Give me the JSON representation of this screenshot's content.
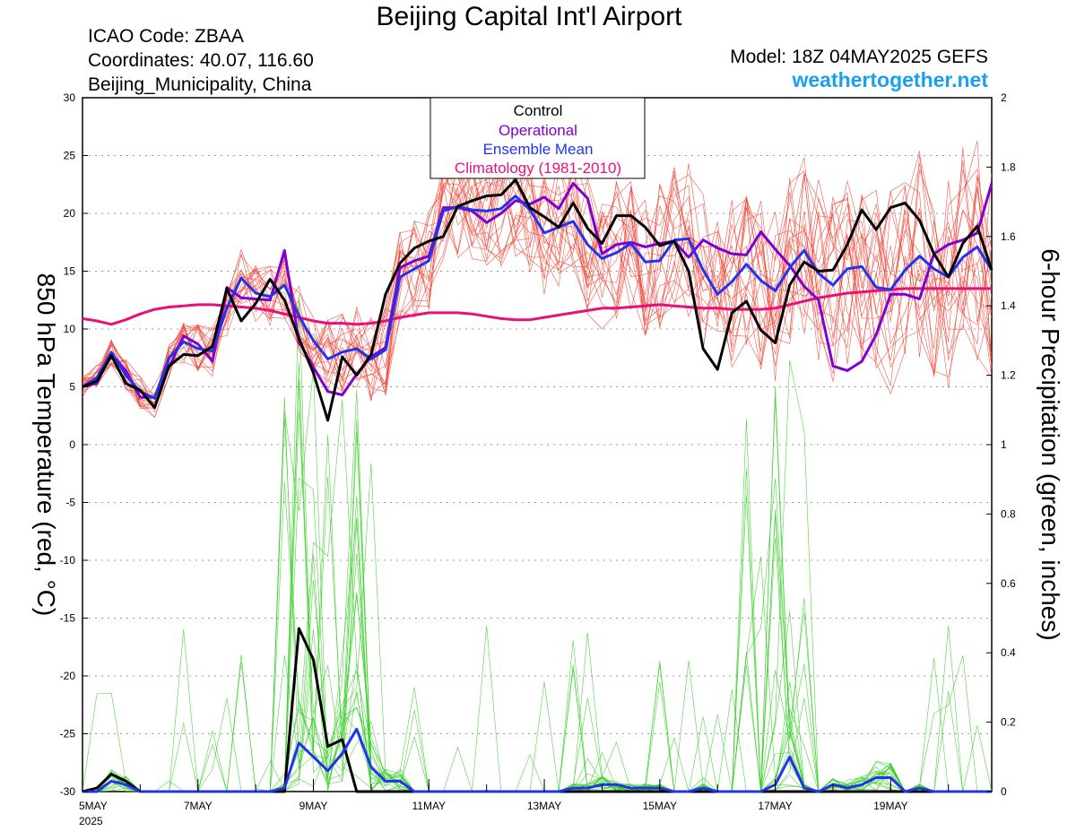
{
  "header": {
    "title": "Beijing Capital Int'l Airport",
    "icao": "ICAO Code: ZBAA",
    "coords": "Coordinates: 40.07, 116.60",
    "region": "Beijing_Municipality, China",
    "model": "Model: 18Z 04MAY2025 GEFS",
    "site": "weathertogether.net"
  },
  "colors": {
    "control": "#000000",
    "operational": "#8000d0",
    "ensemble_mean": "#2233ee",
    "climatology": "#e8107a",
    "members_temp": "#f04030",
    "members_precip": "#33cc22",
    "site": "#1aa0f0"
  },
  "chart_data": {
    "type": "line",
    "title": "Beijing Capital Int'l Airport",
    "ylabel_left": "850 hPa Temperature (red, °C)",
    "ylabel_right": "6-hour Precipitation (green, inches)",
    "ylim_left": [
      -30,
      30
    ],
    "ylim_right": [
      0,
      2
    ],
    "yticks_left": [
      "30",
      "25",
      "20",
      "15",
      "10",
      "5",
      "0",
      "-5",
      "-10",
      "-15",
      "-20",
      "-25",
      "-30"
    ],
    "yticks_right": [
      "2",
      "1.8",
      "1.6",
      "1.4",
      "1.2",
      "1",
      "0.8",
      "0.6",
      "0.4",
      "0.2",
      "0"
    ],
    "x_start": "5MAY 2025",
    "x_step_hours": 6,
    "xticks": [
      {
        "label": "5MAY",
        "sub": "2025",
        "step": 0
      },
      {
        "label": "7MAY",
        "sub": "",
        "step": 8
      },
      {
        "label": "9MAY",
        "sub": "",
        "step": 16
      },
      {
        "label": "11MAY",
        "sub": "",
        "step": 24
      },
      {
        "label": "13MAY",
        "sub": "",
        "step": 32
      },
      {
        "label": "15MAY",
        "sub": "",
        "step": 40
      },
      {
        "label": "17MAY",
        "sub": "",
        "step": 48
      },
      {
        "label": "19MAY",
        "sub": "",
        "step": 56
      }
    ],
    "grid": true,
    "legend": {
      "placement": "top-center",
      "entries": [
        "Control",
        "Operational",
        "Ensemble Mean",
        "Climatology (1981-2010)"
      ]
    },
    "series": [
      {
        "name": "Control",
        "axis": "left",
        "values": [
          5,
          5.5,
          7.7,
          5.3,
          4.7,
          3.2,
          6.8,
          7.8,
          7.7,
          8.5,
          13.5,
          10.7,
          12.2,
          14.3,
          12.5,
          9.2,
          6.2,
          2.1,
          7.6,
          6,
          7.8,
          13,
          15.7,
          17,
          17.6,
          18,
          20.6,
          21.1,
          21.5,
          21.6,
          22.9,
          20.5,
          19.7,
          18.8,
          20.9,
          18.7,
          17.4,
          19.8,
          19.8,
          18.8,
          17.2,
          17.6,
          15,
          8.3,
          6.5,
          11.4,
          12.4,
          9.9,
          8.8,
          13.8,
          15.8,
          15,
          15.1,
          17.3,
          20.3,
          18.6,
          20.5,
          20.9,
          19.4,
          16.5,
          14.5,
          17.4,
          18.9,
          15.1
        ]
      },
      {
        "name": "Operational",
        "axis": "left",
        "values": [
          5,
          5.3,
          7.9,
          6.4,
          4.1,
          4.1,
          6.7,
          9.4,
          8.7,
          7.2,
          13.6,
          12.7,
          12.6,
          12.5,
          16.8,
          8.9,
          6.7,
          4.6,
          4.3,
          6.1,
          7.6,
          8.4,
          15.3,
          15.9,
          16.3,
          20.5,
          20.5,
          20.2,
          19.2,
          20,
          21.1,
          20.8,
          21.4,
          20.4,
          22.6,
          21.3,
          16.5,
          17.3,
          17.5,
          17.1,
          17.4,
          17.6,
          16.2,
          17.7,
          17,
          16.5,
          16.4,
          18.4,
          16.9,
          15.5,
          13.7,
          12.5,
          6.8,
          6.4,
          7.2,
          9.5,
          13,
          13,
          12.6,
          16.5,
          17.3,
          17.7,
          18.3,
          22.6
        ]
      },
      {
        "name": "Ensemble Mean",
        "axis": "left",
        "values": [
          5,
          5.8,
          8,
          6,
          4.6,
          4,
          7.5,
          8.9,
          8.3,
          8.1,
          11.8,
          14.4,
          13.1,
          12.8,
          13.8,
          11.1,
          9,
          7.4,
          8,
          8.3,
          7.4,
          8.2,
          14.5,
          15.2,
          15.9,
          20.2,
          20.6,
          20.3,
          20.2,
          20.4,
          21.5,
          20.3,
          18.3,
          18.8,
          19.3,
          17.3,
          16.1,
          16.6,
          17.4,
          15.8,
          15.9,
          17.7,
          17.8,
          15.1,
          13,
          14.1,
          15.6,
          14.2,
          13.3,
          15.3,
          16.8,
          14.8,
          13.8,
          15.2,
          15.4,
          13.6,
          13.4,
          15.1,
          16.3,
          15.2,
          14.5,
          16.2,
          17.1,
          15.1
        ]
      },
      {
        "name": "Climatology (1981-2010)",
        "axis": "left",
        "values": [
          10.9,
          10.7,
          10.4,
          10.8,
          11.3,
          11.7,
          11.9,
          12,
          12.1,
          12.1,
          12,
          11.9,
          11.8,
          11.6,
          11.3,
          11,
          10.7,
          10.5,
          10.5,
          10.4,
          10.5,
          10.7,
          11,
          11.2,
          11.4,
          11.4,
          11.4,
          11.3,
          11.1,
          10.9,
          10.8,
          10.8,
          11,
          11.2,
          11.4,
          11.6,
          11.8,
          11.8,
          11.9,
          12,
          12.1,
          12,
          11.9,
          11.8,
          11.8,
          11.7,
          11.7,
          11.7,
          11.8,
          12.1,
          12.4,
          12.7,
          12.9,
          13.1,
          13.2,
          13.3,
          13.4,
          13.5,
          13.5,
          13.5,
          13.5,
          13.5,
          13.5,
          13.5
        ]
      },
      {
        "name": "Control",
        "axis": "right",
        "values": [
          0,
          0.01,
          0.05,
          0.03,
          0,
          0,
          0,
          0,
          0,
          0,
          0,
          0,
          0,
          0,
          0,
          0.47,
          0.38,
          0.13,
          0.15,
          0,
          0,
          0,
          0,
          0,
          0,
          0,
          0,
          0,
          0,
          0,
          0,
          0,
          0,
          0,
          0,
          0,
          0,
          0,
          0,
          0,
          0,
          0,
          0,
          0,
          0,
          0,
          0,
          0,
          0,
          0,
          0,
          0,
          0,
          0,
          0,
          0,
          0,
          0,
          0,
          0,
          0,
          0,
          0,
          0
        ]
      },
      {
        "name": "Ensemble Mean",
        "axis": "right",
        "values": [
          0,
          0,
          0.03,
          0.02,
          0,
          0,
          0,
          0,
          0,
          0,
          0,
          0,
          0,
          0,
          0.01,
          0.14,
          0.1,
          0.06,
          0.11,
          0.18,
          0.07,
          0.03,
          0.03,
          0,
          0,
          0,
          0,
          0,
          0,
          0,
          0,
          0,
          0,
          0,
          0.01,
          0.01,
          0.02,
          0.02,
          0.01,
          0.01,
          0.01,
          0,
          0,
          0.01,
          0,
          0,
          0,
          0,
          0.02,
          0.1,
          0.01,
          0,
          0.02,
          0.01,
          0.02,
          0.04,
          0.04,
          0,
          0.01,
          0,
          0,
          0,
          0,
          0
        ]
      }
    ]
  }
}
